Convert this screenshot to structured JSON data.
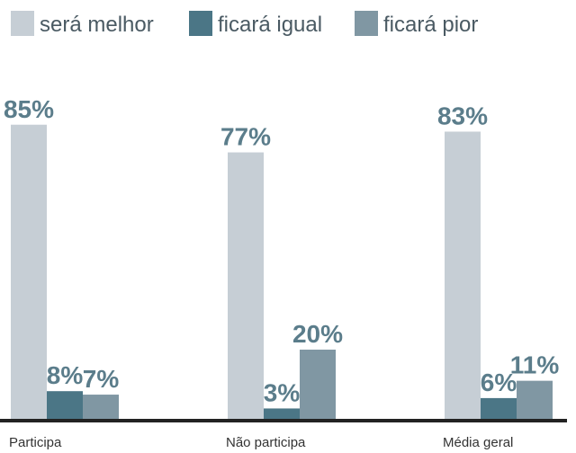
{
  "chart_data": {
    "type": "bar",
    "categories": [
      "Participa",
      "Não participa",
      "Média geral"
    ],
    "series": [
      {
        "name": "será melhor",
        "color": "#c6ced5",
        "values": [
          85,
          77,
          83
        ],
        "value_labels": [
          "85%",
          "77%",
          "83%"
        ]
      },
      {
        "name": "ficará igual",
        "color": "#4b7686",
        "values": [
          8,
          3,
          6
        ],
        "value_labels": [
          "8%",
          "3%",
          "6%"
        ]
      },
      {
        "name": "ficará pior",
        "color": "#8097a3",
        "values": [
          7,
          20,
          11
        ],
        "value_labels": [
          "7%",
          "20%",
          "11%"
        ]
      }
    ]
  }
}
